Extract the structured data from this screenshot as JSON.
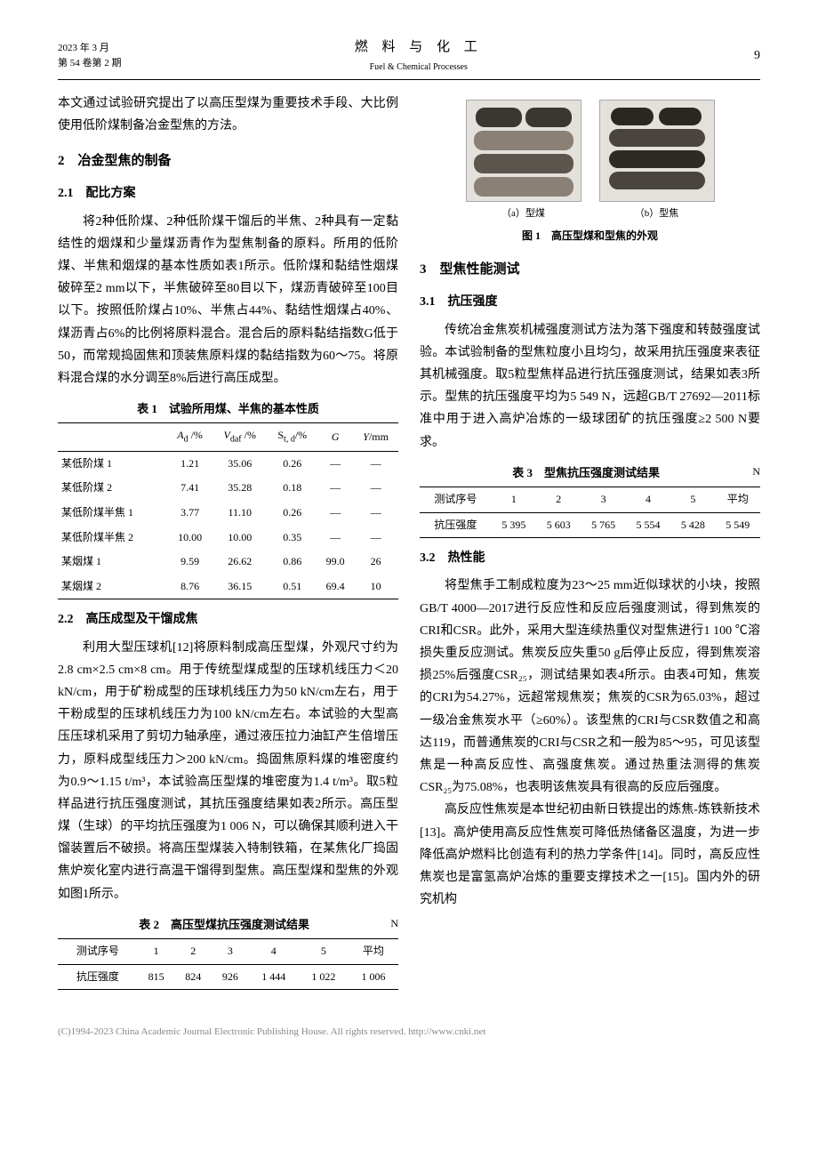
{
  "header": {
    "date": "2023 年 3 月",
    "vol": "第 54 卷第 2 期",
    "title_cn": "燃 料 与 化 工",
    "title_en": "Fuel & Chemical Processes",
    "page_no": "9"
  },
  "leftcol": {
    "intro": "本文通过试验研究提出了以高压型煤为重要技术手段、大比例使用低阶煤制备冶金型焦的方法。",
    "sec2_title": "2　冶金型焦的制备",
    "sec21_title": "2.1　配比方案",
    "p21": "将2种低阶煤、2种低阶煤干馏后的半焦、2种具有一定黏结性的烟煤和少量煤沥青作为型焦制备的原料。所用的低阶煤、半焦和烟煤的基本性质如表1所示。低阶煤和黏结性烟煤破碎至2 mm以下，半焦破碎至80目以下，煤沥青破碎至100目以下。按照低阶煤占10%、半焦占44%、黏结性烟煤占40%、煤沥青占6%的比例将原料混合。混合后的原料黏结指数G低于50，而常规捣固焦和顶装焦原料煤的黏结指数为60～75。将原料混合煤的水分调至8%后进行高压成型。",
    "table1_caption": "表 1　试验所用煤、半焦的基本性质",
    "table1_cols": [
      "",
      "A_d /%",
      "V_daf /%",
      "S_t, d /%",
      "G",
      "Y/mm"
    ],
    "table1_rows": [
      [
        "某低阶煤 1",
        "1.21",
        "35.06",
        "0.26",
        "—",
        "—"
      ],
      [
        "某低阶煤 2",
        "7.41",
        "35.28",
        "0.18",
        "—",
        "—"
      ],
      [
        "某低阶煤半焦 1",
        "3.77",
        "11.10",
        "0.26",
        "—",
        "—"
      ],
      [
        "某低阶煤半焦 2",
        "10.00",
        "10.00",
        "0.35",
        "—",
        "—"
      ],
      [
        "某烟煤 1",
        "9.59",
        "26.62",
        "0.86",
        "99.0",
        "26"
      ],
      [
        "某烟煤 2",
        "8.76",
        "36.15",
        "0.51",
        "69.4",
        "10"
      ]
    ],
    "sec22_title": "2.2　高压成型及干馏成焦",
    "p22": "利用大型压球机[12]将原料制成高压型煤，外观尺寸约为2.8 cm×2.5 cm×8 cm。用于传统型煤成型的压球机线压力＜20 kN/cm，用于矿粉成型的压球机线压力为50 kN/cm左右，用于干粉成型的压球机线压力为100 kN/cm左右。本试验的大型高压压球机采用了剪切力轴承座，通过液压拉力油缸产生倍增压力，原料成型线压力＞200 kN/cm。捣固焦原料煤的堆密度约为0.9～1.15 t/m³，本试验高压型煤的堆密度为1.4 t/m³。取5粒样品进行抗压强度测试，其抗压强度结果如表2所示。高压型煤（生球）的平均抗压强度为1 006 N，可以确保其顺利进入干馏装置后不破损。将高压型煤装入特制铁箱，在某焦化厂捣固焦炉炭化室内进行高温干馏得到型焦。高压型煤和型焦的外观如图1所示。",
    "table2_caption": "表 2　高压型煤抗压强度测试结果",
    "table2_unit": "N",
    "table2_cols": [
      "测试序号",
      "1",
      "2",
      "3",
      "4",
      "5",
      "平均"
    ],
    "table2_row": [
      "抗压强度",
      "815",
      "824",
      "926",
      "1 444",
      "1 022",
      "1 006"
    ]
  },
  "rightcol": {
    "fig1_sub_a": "（a）型煤",
    "fig1_sub_b": "（b）型焦",
    "fig1_caption": "图 1　高压型煤和型焦的外观",
    "sec3_title": "3　型焦性能测试",
    "sec31_title": "3.1　抗压强度",
    "p31": "传统冶金焦炭机械强度测试方法为落下强度和转鼓强度试验。本试验制备的型焦粒度小且均匀，故采用抗压强度来表征其机械强度。取5粒型焦样品进行抗压强度测试，结果如表3所示。型焦的抗压强度平均为5 549 N，远超GB/T 27692—2011标准中用于进入高炉冶炼的一级球团矿的抗压强度≥2 500 N要求。",
    "table3_caption": "表 3　型焦抗压强度测试结果",
    "table3_unit": "N",
    "table3_cols": [
      "测试序号",
      "1",
      "2",
      "3",
      "4",
      "5",
      "平均"
    ],
    "table3_row": [
      "抗压强度",
      "5 395",
      "5 603",
      "5 765",
      "5 554",
      "5 428",
      "5 549"
    ],
    "sec32_title": "3.2　热性能",
    "p32a": "将型焦手工制成粒度为23～25 mm近似球状的小块，按照GB/T 4000—2017进行反应性和反应后强度测试，得到焦炭的CRI和CSR。此外，采用大型连续热重仪对型焦进行1 100 ℃溶损失重反应测试。焦炭反应失重50 g后停止反应，得到焦炭溶损25%后强度CSR₂₅，测试结果如表4所示。由表4可知，焦炭的CRI为54.27%，远超常规焦炭；焦炭的CSR为65.03%，超过一级冶金焦炭水平（≥60%）。该型焦的CRI与CSR数值之和高达119，而普通焦炭的CRI与CSR之和一般为85～95，可见该型焦是一种高反应性、高强度焦炭。通过热重法测得的焦炭CSR₂₅为75.08%，也表明该焦炭具有很高的反应后强度。",
    "p32b": "高反应性焦炭是本世纪初由新日铁提出的炼焦-炼铁新技术[13]。高炉使用高反应性焦炭可降低热储备区温度，为进一步降低高炉燃料比创造有利的热力学条件[14]。同时，高反应性焦炭也是富氢高炉冶炼的重要支撑技术之一[15]。国内外的研究机构"
  },
  "footer": "(C)1994-2023 China Academic Journal Electronic Publishing House. All rights reserved.    http://www.cnki.net"
}
